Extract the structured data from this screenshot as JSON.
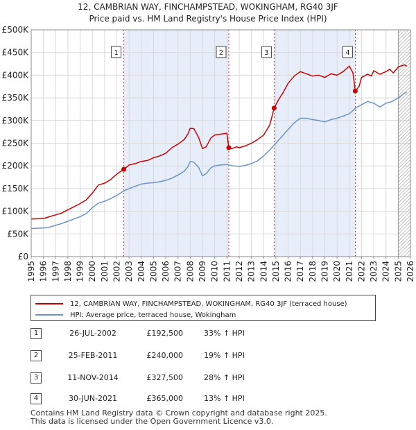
{
  "title_line1": "12, CAMBRIAN WAY, FINCHAMPSTEAD, WOKINGHAM, RG40 3JF",
  "title_line2": "Price paid vs. HM Land Registry's House Price Index (HPI)",
  "legend": {
    "property_label": "12, CAMBRIAN WAY, FINCHAMPSTEAD, WOKINGHAM, RG40 3JF (terraced house)",
    "hpi_label": "HPI: Average price, terraced house, Wokingham"
  },
  "colors": {
    "property": "#cc0000",
    "hpi": "#6a93c7",
    "shade": "#e8eef9",
    "vline": "#cc0000",
    "hatch": "#aaaaaa"
  },
  "sales": [
    {
      "num": "1",
      "date": "26-JUL-2002",
      "price": "£192,500",
      "hpi": "33% ↑ HPI"
    },
    {
      "num": "2",
      "date": "25-FEB-2011",
      "price": "£240,000",
      "hpi": "19% ↑ HPI"
    },
    {
      "num": "3",
      "date": "11-NOV-2014",
      "price": "£327,500",
      "hpi": "28% ↑ HPI"
    },
    {
      "num": "4",
      "date": "30-JUN-2021",
      "price": "£365,000",
      "hpi": "13% ↑ HPI"
    }
  ],
  "footer_line1": "Contains HM Land Registry data © Crown copyright and database right 2025.",
  "footer_line2": "This data is licensed under the Open Government Licence v3.0.",
  "chart_data": {
    "type": "line",
    "xlim": [
      1995,
      2026
    ],
    "ylim": [
      0,
      500000
    ],
    "yticks": [
      0,
      50000,
      100000,
      150000,
      200000,
      250000,
      300000,
      350000,
      400000,
      450000,
      500000
    ],
    "ytick_labels": [
      "£0",
      "£50K",
      "£100K",
      "£150K",
      "£200K",
      "£250K",
      "£300K",
      "£350K",
      "£400K",
      "£450K",
      "£500K"
    ],
    "xticks": [
      1995,
      1996,
      1997,
      1998,
      1999,
      2000,
      2001,
      2002,
      2003,
      2004,
      2005,
      2006,
      2007,
      2008,
      2009,
      2010,
      2011,
      2012,
      2013,
      2014,
      2015,
      2016,
      2017,
      2018,
      2019,
      2020,
      2021,
      2022,
      2023,
      2024,
      2025,
      2026
    ],
    "grid": true,
    "shaded_ranges": [
      [
        2002.57,
        2011.15
      ],
      [
        2014.86,
        2021.49
      ]
    ],
    "hatched_from": 2025.0,
    "sale_markers": [
      {
        "label": "1",
        "x": 2002.57,
        "y": 192500
      },
      {
        "label": "2",
        "x": 2011.15,
        "y": 240000
      },
      {
        "label": "3",
        "x": 2014.86,
        "y": 327500
      },
      {
        "label": "4",
        "x": 2021.49,
        "y": 365000
      }
    ],
    "series": [
      {
        "name": "12, CAMBRIAN WAY, FINCHAMPSTEAD, WOKINGHAM, RG40 3JF (terraced house)",
        "x": [
          1995,
          1996,
          1996.5,
          1997,
          1997.5,
          1998,
          1998.5,
          1999,
          1999.5,
          2000,
          2000.5,
          2001,
          2001.5,
          2002,
          2002.57,
          2003,
          2003.5,
          2004,
          2004.5,
          2005,
          2005.5,
          2006,
          2006.5,
          2007,
          2007.5,
          2007.8,
          2008,
          2008.3,
          2008.7,
          2009,
          2009.3,
          2009.7,
          2010,
          2010.5,
          2011.0,
          2011.15,
          2011.4,
          2011.8,
          2012,
          2012.5,
          2013,
          2013.5,
          2014,
          2014.5,
          2014.86,
          2015.2,
          2015.6,
          2016,
          2016.5,
          2017,
          2017.5,
          2018,
          2018.5,
          2019,
          2019.5,
          2020,
          2020.5,
          2021.0,
          2021.3,
          2021.49,
          2021.8,
          2022,
          2022.5,
          2022.8,
          2023,
          2023.5,
          2024,
          2024.3,
          2024.6,
          2025,
          2025.5,
          2025.7
        ],
        "values": [
          83000,
          84000,
          88000,
          92000,
          96000,
          103000,
          110000,
          117000,
          125000,
          140000,
          158000,
          162000,
          170000,
          182000,
          192500,
          202000,
          205000,
          210000,
          212000,
          218000,
          222000,
          228000,
          240000,
          248000,
          258000,
          270000,
          283000,
          282000,
          262000,
          238000,
          242000,
          262000,
          268000,
          270000,
          272000,
          240000,
          238000,
          242000,
          240000,
          244000,
          250000,
          258000,
          268000,
          290000,
          327500,
          345000,
          362000,
          382000,
          398000,
          408000,
          403000,
          398000,
          400000,
          395000,
          403000,
          400000,
          408000,
          420000,
          405000,
          365000,
          375000,
          395000,
          402000,
          398000,
          410000,
          402000,
          408000,
          413000,
          405000,
          418000,
          423000,
          420000
        ]
      },
      {
        "name": "HPI: Average price, terraced house, Wokingham",
        "x": [
          1995,
          1996,
          1996.5,
          1997,
          1997.5,
          1998,
          1998.5,
          1999,
          1999.5,
          2000,
          2000.5,
          2001,
          2001.5,
          2002,
          2002.57,
          2003,
          2003.5,
          2004,
          2004.5,
          2005,
          2005.5,
          2006,
          2006.5,
          2007,
          2007.5,
          2007.8,
          2008,
          2008.3,
          2008.7,
          2009,
          2009.3,
          2009.7,
          2010,
          2010.5,
          2011,
          2011.5,
          2012,
          2012.5,
          2013,
          2013.5,
          2014,
          2014.5,
          2015,
          2015.5,
          2016,
          2016.5,
          2017,
          2017.5,
          2018,
          2018.5,
          2019,
          2019.5,
          2020,
          2020.5,
          2021,
          2021.5,
          2022,
          2022.5,
          2023,
          2023.5,
          2024,
          2024.5,
          2025,
          2025.5,
          2025.7
        ],
        "values": [
          62000,
          63000,
          65000,
          69000,
          73000,
          78000,
          83000,
          88000,
          95000,
          108000,
          118000,
          122000,
          128000,
          135000,
          145000,
          150000,
          155000,
          160000,
          162000,
          163000,
          165000,
          168000,
          173000,
          180000,
          188000,
          198000,
          210000,
          208000,
          196000,
          178000,
          183000,
          196000,
          200000,
          202000,
          203000,
          200000,
          199000,
          201000,
          205000,
          211000,
          222000,
          235000,
          250000,
          265000,
          280000,
          295000,
          305000,
          305000,
          302000,
          300000,
          297000,
          302000,
          305000,
          310000,
          315000,
          327000,
          335000,
          342000,
          338000,
          330000,
          338000,
          342000,
          350000,
          360000,
          363000
        ]
      }
    ]
  }
}
